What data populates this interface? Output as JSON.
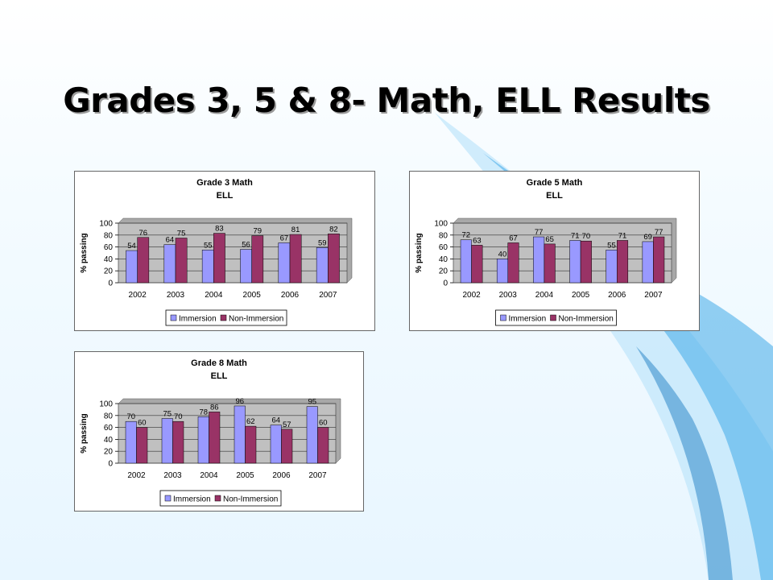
{
  "slide": {
    "title": "Grades 3, 5 & 8- Math, ELL Results"
  },
  "colors": {
    "immersion": "#9999ff",
    "non_immersion": "#993366",
    "plot_bg": "#c0c0c0"
  },
  "chart_data": [
    {
      "type": "bar",
      "title": "Grade 3 Math",
      "subtitle": "ELL",
      "ylabel": "% passing",
      "ylim": [
        0,
        100
      ],
      "yticks": [
        0,
        20,
        40,
        60,
        80,
        100
      ],
      "categories": [
        "2002",
        "2003",
        "2004",
        "2005",
        "2006",
        "2007"
      ],
      "series": [
        {
          "name": "Immersion",
          "values": [
            54,
            64,
            55,
            56,
            67,
            59
          ]
        },
        {
          "name": "Non-Immersion",
          "values": [
            76,
            75,
            83,
            79,
            81,
            82
          ]
        }
      ],
      "legend": "bottom",
      "grid": true
    },
    {
      "type": "bar",
      "title": "Grade 5 Math",
      "subtitle": "ELL",
      "ylabel": "% passing",
      "ylim": [
        0,
        100
      ],
      "yticks": [
        0,
        20,
        40,
        60,
        80,
        100
      ],
      "categories": [
        "2002",
        "2003",
        "2004",
        "2005",
        "2006",
        "2007"
      ],
      "series": [
        {
          "name": "Immersion",
          "values": [
            72,
            40,
            77,
            71,
            55,
            69
          ]
        },
        {
          "name": "Non-Immersion",
          "values": [
            63,
            67,
            65,
            70,
            71,
            77
          ]
        }
      ],
      "legend": "bottom",
      "grid": true
    },
    {
      "type": "bar",
      "title": "Grade 8 Math",
      "subtitle": "ELL",
      "ylabel": "% passing",
      "ylim": [
        0,
        100
      ],
      "yticks": [
        0,
        20,
        40,
        60,
        80,
        100
      ],
      "categories": [
        "2002",
        "2003",
        "2004",
        "2005",
        "2006",
        "2007"
      ],
      "series": [
        {
          "name": "Immersion",
          "values": [
            70,
            75,
            78,
            96,
            64,
            95
          ]
        },
        {
          "name": "Non-Immersion",
          "values": [
            60,
            70,
            86,
            62,
            57,
            60
          ]
        }
      ],
      "legend": "bottom",
      "grid": true
    }
  ]
}
